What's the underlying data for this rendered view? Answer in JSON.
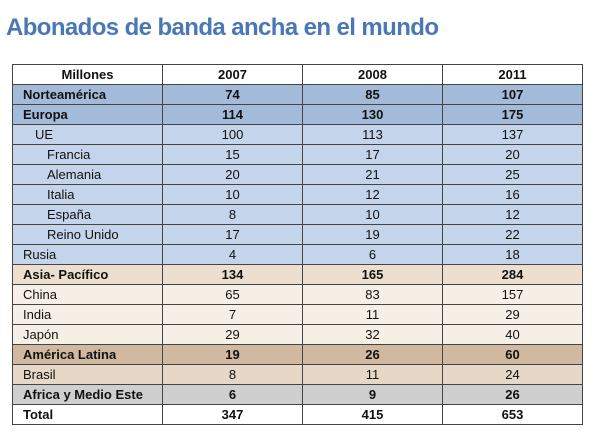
{
  "chart_data": {
    "type": "table",
    "title": "Abonados de banda ancha en el mundo",
    "header_label": "Millones",
    "columns": [
      "2007",
      "2008",
      "2011"
    ],
    "colors": {
      "title": "#4a78b5",
      "europa": "#a3bad9",
      "europa_sub": "#c4d4ea",
      "asia": "#ecdfd0",
      "asia_sub": "#f5efe6",
      "latam": "#d1b8a0",
      "latam_sub": "#e6d7c7",
      "africa": "#cfcfcf"
    },
    "rows": [
      {
        "label": "Norteamérica",
        "values": [
          "74",
          "85",
          "107"
        ],
        "level": 0,
        "bold": true,
        "group": "europa"
      },
      {
        "label": "Europa",
        "values": [
          "114",
          "130",
          "175"
        ],
        "level": 0,
        "bold": true,
        "group": "europa"
      },
      {
        "label": "UE",
        "values": [
          "100",
          "113",
          "137"
        ],
        "level": 1,
        "bold": false,
        "group": "europa-sub"
      },
      {
        "label": "Francia",
        "values": [
          "15",
          "17",
          "20"
        ],
        "level": 2,
        "bold": false,
        "group": "europa-sub"
      },
      {
        "label": "Alemania",
        "values": [
          "20",
          "21",
          "25"
        ],
        "level": 2,
        "bold": false,
        "group": "europa-sub"
      },
      {
        "label": "Italia",
        "values": [
          "10",
          "12",
          "16"
        ],
        "level": 2,
        "bold": false,
        "group": "europa-sub"
      },
      {
        "label": "España",
        "values": [
          "8",
          "10",
          "12"
        ],
        "level": 2,
        "bold": false,
        "group": "europa-sub"
      },
      {
        "label": "Reino Unido",
        "values": [
          "17",
          "19",
          "22"
        ],
        "level": 2,
        "bold": false,
        "group": "europa-sub"
      },
      {
        "label": "Rusia",
        "values": [
          "4",
          "6",
          "18"
        ],
        "level": 0,
        "bold": false,
        "group": "europa-sub"
      },
      {
        "label": "Asia- Pacífico",
        "values": [
          "134",
          "165",
          "284"
        ],
        "level": 0,
        "bold": true,
        "group": "asia"
      },
      {
        "label": "China",
        "values": [
          "65",
          "83",
          "157"
        ],
        "level": 0,
        "bold": false,
        "group": "asia-sub"
      },
      {
        "label": "India",
        "values": [
          "7",
          "11",
          "29"
        ],
        "level": 0,
        "bold": false,
        "group": "asia-sub"
      },
      {
        "label": "Japón",
        "values": [
          "29",
          "32",
          "40"
        ],
        "level": 0,
        "bold": false,
        "group": "asia-sub"
      },
      {
        "label": "América Latina",
        "values": [
          "19",
          "26",
          "60"
        ],
        "level": 0,
        "bold": true,
        "group": "latam"
      },
      {
        "label": "Brasil",
        "values": [
          "8",
          "11",
          "24"
        ],
        "level": 0,
        "bold": false,
        "group": "latam-sub"
      },
      {
        "label": "Africa y Medio Este",
        "values": [
          "6",
          "9",
          "26"
        ],
        "level": 0,
        "bold": true,
        "group": "africa"
      },
      {
        "label": "Total",
        "values": [
          "347",
          "415",
          "653"
        ],
        "level": 0,
        "bold": true,
        "group": "total"
      }
    ]
  }
}
